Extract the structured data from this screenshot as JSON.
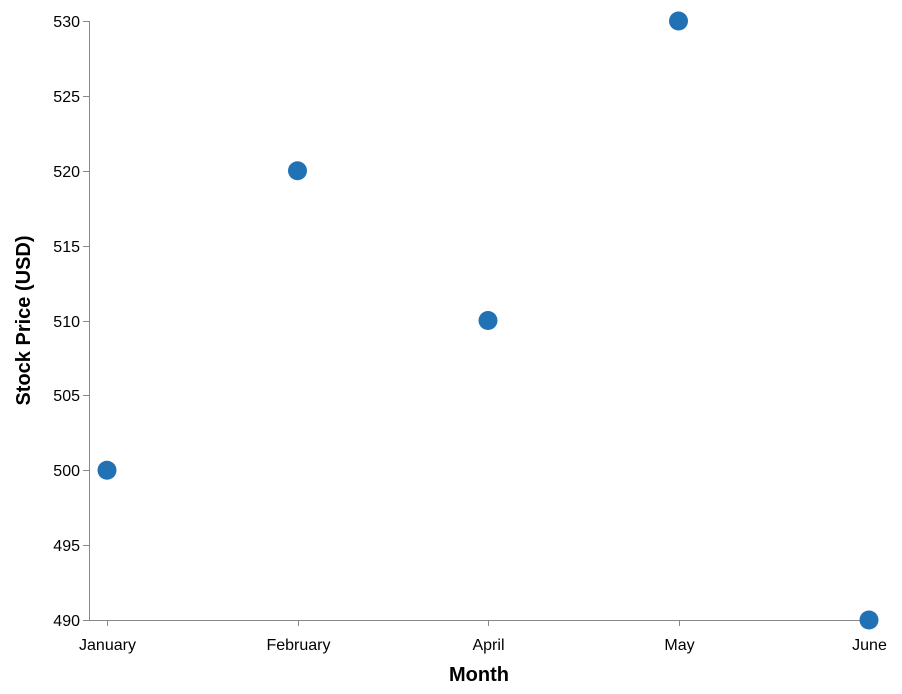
{
  "chart_data": {
    "type": "scatter",
    "title": "",
    "xlabel": "Month",
    "ylabel": "Stock Price (USD)",
    "categories": [
      "January",
      "February",
      "April",
      "May",
      "June"
    ],
    "series": [
      {
        "values": [
          500,
          520,
          510,
          530,
          490
        ]
      }
    ],
    "ylim": [
      490,
      530
    ],
    "yticks": [
      "490",
      "495",
      "500",
      "505",
      "510",
      "515",
      "520",
      "525",
      "530"
    ],
    "grid": false,
    "legend": "none",
    "colors": {
      "point": "#2171b5",
      "axis": "#888888",
      "text": "#000000"
    }
  }
}
